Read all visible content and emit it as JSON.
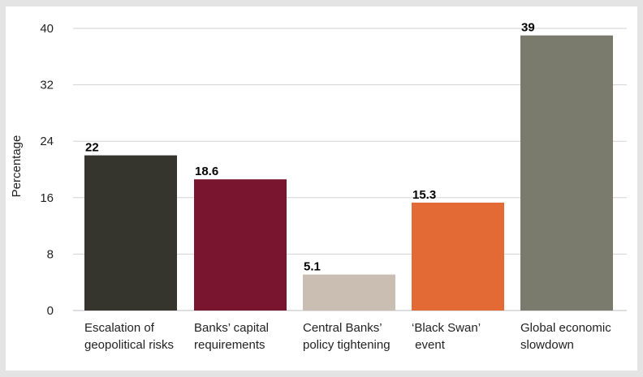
{
  "chart_data": {
    "type": "bar",
    "title": "",
    "xlabel": "",
    "ylabel": "Percentage",
    "ylim": [
      0,
      40
    ],
    "yticks": [
      0,
      8,
      16,
      24,
      32,
      40
    ],
    "grid": true,
    "categories": [
      [
        "Escalation of",
        "geopolitical risks"
      ],
      [
        "Banks’ capital",
        "requirements"
      ],
      [
        "Central Banks’",
        "policy tightening"
      ],
      [
        "‘Black Swan’",
        " event"
      ],
      [
        "Global economic",
        "slowdown"
      ]
    ],
    "values": [
      22,
      18.6,
      5.1,
      15.3,
      39
    ],
    "value_labels": [
      "22",
      "18.6",
      "5.1",
      "15.3",
      "39"
    ],
    "colors": [
      "#35342d",
      "#7a1530",
      "#cabdb2",
      "#e36a35",
      "#7a7a6d"
    ]
  }
}
